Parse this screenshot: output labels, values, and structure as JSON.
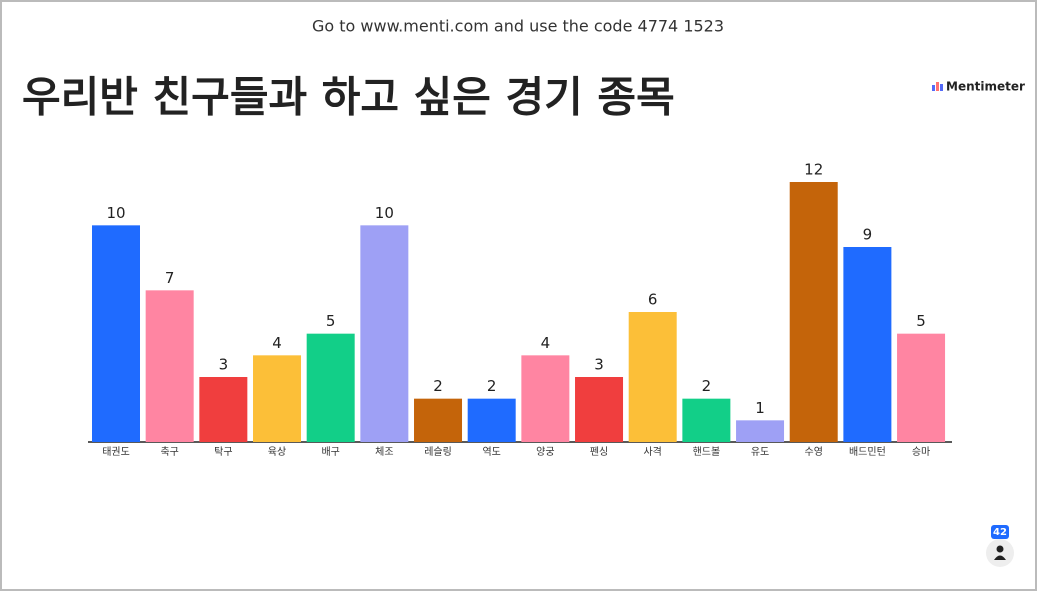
{
  "header": {
    "join_text": "Go to www.menti.com and use the code 4774 1523",
    "brand": "Mentimeter"
  },
  "participants": 42,
  "chart_data": {
    "type": "bar",
    "title": "우리반 친구들과 하고 싶은 경기 종목",
    "categories": [
      "태권도",
      "축구",
      "탁구",
      "육상",
      "배구",
      "체조",
      "레슬링",
      "역도",
      "양궁",
      "펜싱",
      "사격",
      "핸드볼",
      "유도",
      "수영",
      "배드민턴",
      "승마"
    ],
    "values": [
      10,
      7,
      3,
      4,
      5,
      10,
      2,
      2,
      4,
      3,
      6,
      2,
      1,
      12,
      9,
      5
    ],
    "colors": [
      "#1f6bff",
      "#ff85a2",
      "#f03e3e",
      "#fcbf38",
      "#12cf88",
      "#9ea0f5",
      "#c4640a",
      "#1f6bff",
      "#ff85a2",
      "#f03e3e",
      "#fcbf38",
      "#12cf88",
      "#9ea0f5",
      "#c4640a",
      "#1f6bff",
      "#ff85a2"
    ]
  }
}
